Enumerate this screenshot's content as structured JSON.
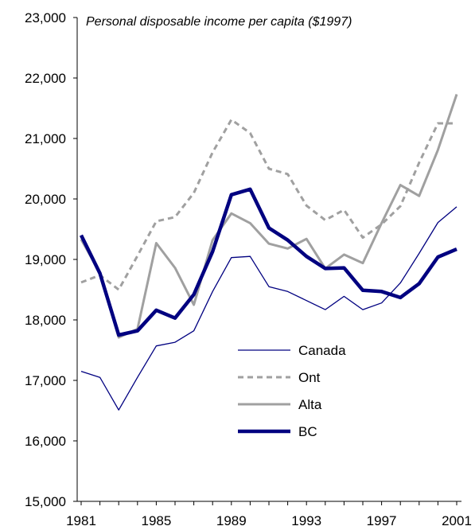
{
  "chart_data": {
    "type": "line",
    "title": "Personal disposable income per capita ($1997)",
    "xlabel": "",
    "ylabel": "",
    "ylim": [
      15000,
      23000
    ],
    "y_ticks": [
      "15,000",
      "16,000",
      "17,000",
      "18,000",
      "19,000",
      "20,000",
      "21,000",
      "22,000",
      "23,000"
    ],
    "y_tick_values": [
      15000,
      16000,
      17000,
      18000,
      19000,
      20000,
      21000,
      22000,
      23000
    ],
    "x": [
      1981,
      1982,
      1983,
      1984,
      1985,
      1986,
      1987,
      1988,
      1989,
      1990,
      1991,
      1992,
      1993,
      1994,
      1995,
      1996,
      1997,
      1998,
      1999,
      2000,
      2001
    ],
    "x_tick_labels": [
      "1981",
      "1985",
      "1989",
      "1993",
      "1997",
      "2001"
    ],
    "x_tick_values": [
      1981,
      1985,
      1989,
      1993,
      1997,
      2001
    ],
    "grid": false,
    "legend_position": "lower-center",
    "series": [
      {
        "name": "Canada",
        "color": "#000080",
        "style": "thin-solid",
        "values": [
          17150,
          17050,
          16510,
          17050,
          17570,
          17630,
          17820,
          18470,
          19030,
          19050,
          18550,
          18470,
          18320,
          18170,
          18390,
          18170,
          18280,
          18610,
          19100,
          19610,
          19870
        ]
      },
      {
        "name": "Ont",
        "color": "#a0a0a0",
        "style": "dashed",
        "values": [
          18620,
          18740,
          18500,
          19060,
          19630,
          19700,
          20100,
          20770,
          21310,
          21090,
          20500,
          20410,
          19890,
          19650,
          19820,
          19360,
          19580,
          19880,
          20600,
          21250,
          21250
        ]
      },
      {
        "name": "Alta",
        "color": "#a0a0a0",
        "style": "solid",
        "values": [
          19330,
          18780,
          17710,
          17850,
          19270,
          18860,
          18250,
          19320,
          19760,
          19600,
          19260,
          19180,
          19340,
          18850,
          19080,
          18940,
          19600,
          20230,
          20050,
          20810,
          21730
        ]
      },
      {
        "name": "BC",
        "color": "#000080",
        "style": "thick-solid",
        "values": [
          19400,
          18770,
          17750,
          17820,
          18160,
          18030,
          18420,
          19130,
          20070,
          20160,
          19520,
          19320,
          19050,
          18850,
          18860,
          18490,
          18470,
          18370,
          18600,
          19040,
          19170
        ]
      }
    ]
  }
}
